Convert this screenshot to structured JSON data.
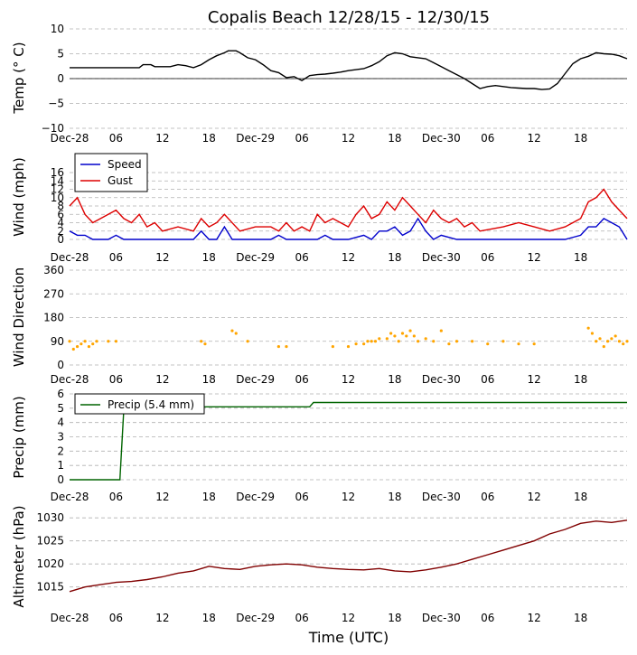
{
  "title": "Copalis Beach 12/28/15 - 12/30/15",
  "xlabel": "Time (UTC)",
  "x_tick_labels": [
    "Dec-28",
    "06",
    "12",
    "18",
    "Dec-29",
    "06",
    "12",
    "18",
    "Dec-30",
    "06",
    "12",
    "18"
  ],
  "x_range_hours": [
    0,
    72
  ],
  "chart_data": [
    {
      "type": "line",
      "ylabel": "Temp (° C)",
      "ylim": [
        -10,
        10
      ],
      "yticks": [
        "10",
        "5",
        "0",
        "−5",
        "−10"
      ],
      "grid": true,
      "series": [
        {
          "color": "#000000",
          "x": [
            0,
            9,
            9.5,
            10.5,
            11,
            12,
            13,
            14,
            15,
            16,
            17,
            18,
            19,
            20,
            20.5,
            21,
            21.5,
            22,
            23,
            24,
            25,
            26,
            27,
            28,
            29,
            30,
            31,
            32,
            33,
            34,
            35,
            36,
            37,
            38,
            39,
            40,
            41,
            42,
            43,
            44,
            45,
            46,
            47,
            48,
            49,
            50,
            51,
            52,
            53,
            54,
            55,
            56,
            57,
            58,
            59,
            60,
            61,
            62,
            63,
            64,
            65,
            66,
            67,
            68,
            69,
            70,
            71,
            72
          ],
          "y": [
            2.2,
            2.2,
            2.8,
            2.8,
            2.4,
            2.4,
            2.4,
            2.8,
            2.6,
            2.2,
            2.8,
            3.8,
            4.6,
            5.2,
            5.6,
            5.6,
            5.6,
            5.2,
            4.2,
            3.8,
            2.8,
            1.6,
            1.2,
            0.2,
            0.4,
            -0.4,
            0.6,
            0.8,
            0.9,
            1.1,
            1.3,
            1.6,
            1.8,
            2,
            2.6,
            3.4,
            4.6,
            5.2,
            5,
            4.4,
            4.2,
            4,
            3.2,
            2.4,
            1.6,
            0.8,
            0,
            -1,
            -2,
            -1.6,
            -1.4,
            -1.6,
            -1.8,
            -1.9,
            -2,
            -2,
            -2.2,
            -2.1,
            -1,
            1,
            3,
            4,
            4.5,
            5.2,
            5,
            4.9,
            4.6,
            4
          ]
        }
      ]
    },
    {
      "type": "line",
      "ylabel": "Wind (mph)",
      "ylim": [
        0,
        16
      ],
      "yticks": [
        "16",
        "14",
        "12",
        "10",
        "8",
        "6",
        "4",
        "2",
        "0"
      ],
      "grid": true,
      "legend": "top-left",
      "series": [
        {
          "name": "Speed",
          "color": "#0000cc",
          "x": [
            0,
            1,
            2,
            3,
            4,
            5,
            6,
            7,
            8,
            10,
            12,
            14,
            16,
            17,
            18,
            19,
            20,
            21,
            22,
            24,
            26,
            27,
            28,
            30,
            32,
            33,
            34,
            36,
            38,
            39,
            40,
            41,
            42,
            43,
            44,
            45,
            46,
            47,
            48,
            50,
            52,
            54,
            56,
            58,
            60,
            62,
            64,
            66,
            67,
            68,
            69,
            70,
            71,
            72
          ],
          "y": [
            2,
            1,
            1,
            0,
            0,
            0,
            1,
            0,
            0,
            0,
            0,
            0,
            0,
            2,
            0,
            0,
            3,
            0,
            0,
            0,
            0,
            1,
            0,
            0,
            0,
            1,
            0,
            0,
            1,
            0,
            2,
            2,
            3,
            1,
            2,
            5,
            2,
            0,
            1,
            0,
            0,
            0,
            0,
            0,
            0,
            0,
            0,
            1,
            3,
            3,
            5,
            4,
            3,
            0
          ]
        },
        {
          "name": "Gust",
          "color": "#dd0000",
          "x": [
            0,
            1,
            2,
            3,
            4,
            5,
            6,
            7,
            8,
            9,
            10,
            11,
            12,
            14,
            16,
            17,
            18,
            19,
            20,
            22,
            24,
            26,
            27,
            28,
            29,
            30,
            31,
            32,
            33,
            34,
            35,
            36,
            37,
            38,
            39,
            40,
            41,
            42,
            43,
            44,
            45,
            46,
            47,
            48,
            49,
            50,
            51,
            52,
            53,
            56,
            58,
            60,
            62,
            64,
            66,
            67,
            68,
            69,
            70,
            71,
            72
          ],
          "y": [
            8,
            10,
            6,
            4,
            5,
            6,
            7,
            5,
            4,
            6,
            3,
            4,
            2,
            3,
            2,
            5,
            3,
            4,
            6,
            2,
            3,
            3,
            2,
            4,
            2,
            3,
            2,
            6,
            4,
            5,
            4,
            3,
            6,
            8,
            5,
            6,
            9,
            7,
            10,
            8,
            6,
            4,
            7,
            5,
            4,
            5,
            3,
            4,
            2,
            3,
            4,
            3,
            2,
            3,
            5,
            9,
            10,
            12,
            9,
            7,
            5
          ]
        }
      ]
    },
    {
      "type": "scatter",
      "ylabel": "Wind Direction",
      "ylim": [
        0,
        360
      ],
      "yticks": [
        "360",
        "270",
        "180",
        "90",
        "0"
      ],
      "grid": true,
      "series": [
        {
          "color": "#ffa500",
          "x": [
            0,
            0.5,
            1,
            1.5,
            2,
            2.5,
            3,
            3.5,
            5,
            6,
            17,
            17.5,
            21,
            21.5,
            23,
            27,
            28,
            34,
            36,
            37,
            38,
            38.5,
            39,
            39.5,
            40,
            41,
            41.5,
            42,
            42.5,
            43,
            43.5,
            44,
            44.5,
            45,
            46,
            47,
            48,
            49,
            50,
            52,
            54,
            56,
            58,
            60,
            67,
            67.5,
            68,
            68.5,
            69,
            69.5,
            70,
            70.5,
            71,
            71.5,
            72
          ],
          "y": [
            90,
            60,
            70,
            80,
            90,
            70,
            80,
            90,
            90,
            90,
            90,
            80,
            130,
            120,
            90,
            70,
            70,
            70,
            70,
            80,
            80,
            90,
            90,
            90,
            100,
            100,
            120,
            110,
            90,
            120,
            110,
            130,
            110,
            90,
            100,
            90,
            130,
            80,
            90,
            90,
            80,
            90,
            80,
            80,
            140,
            120,
            90,
            100,
            70,
            90,
            100,
            110,
            90,
            80,
            90
          ]
        }
      ]
    },
    {
      "type": "line",
      "ylabel": "Precip (mm)",
      "ylim": [
        0,
        6
      ],
      "yticks": [
        "6",
        "5",
        "4",
        "3",
        "2",
        "1",
        "0"
      ],
      "grid": true,
      "legend": "top-left",
      "series": [
        {
          "name": "Precip (5.4 mm)",
          "color": "#006400",
          "x": [
            0,
            6.5,
            7,
            7.2,
            7.5,
            8,
            12,
            16,
            20,
            24,
            28,
            31,
            31.5,
            32,
            36,
            40,
            44,
            48,
            52,
            56,
            60,
            64,
            68,
            72
          ],
          "y": [
            0,
            0,
            4.9,
            5,
            5,
            5,
            5.1,
            5.1,
            5.1,
            5.1,
            5.1,
            5.1,
            5.4,
            5.4,
            5.4,
            5.4,
            5.4,
            5.4,
            5.4,
            5.4,
            5.4,
            5.4,
            5.4,
            5.4
          ]
        }
      ]
    },
    {
      "type": "line",
      "ylabel": "Altimeter (hPa)",
      "ylim": [
        1012,
        1032
      ],
      "yticks": [
        "1030",
        "1025",
        "1020",
        "1015"
      ],
      "grid": true,
      "series": [
        {
          "color": "#800000",
          "x": [
            0,
            2,
            4,
            6,
            8,
            10,
            12,
            14,
            16,
            18,
            20,
            22,
            24,
            26,
            28,
            30,
            32,
            34,
            36,
            38,
            40,
            42,
            44,
            46,
            48,
            50,
            52,
            54,
            56,
            58,
            60,
            62,
            64,
            66,
            68,
            70,
            72
          ],
          "y": [
            1014,
            1015,
            1015.5,
            1016,
            1016.2,
            1016.6,
            1017.2,
            1018,
            1018.5,
            1019.5,
            1019,
            1018.8,
            1019.5,
            1019.8,
            1020,
            1019.8,
            1019.3,
            1019,
            1018.8,
            1018.7,
            1019,
            1018.5,
            1018.3,
            1018.7,
            1019.3,
            1020,
            1021,
            1022,
            1023,
            1024,
            1025,
            1026.5,
            1027.5,
            1028.8,
            1029.3,
            1029,
            1029.5
          ]
        }
      ]
    }
  ]
}
